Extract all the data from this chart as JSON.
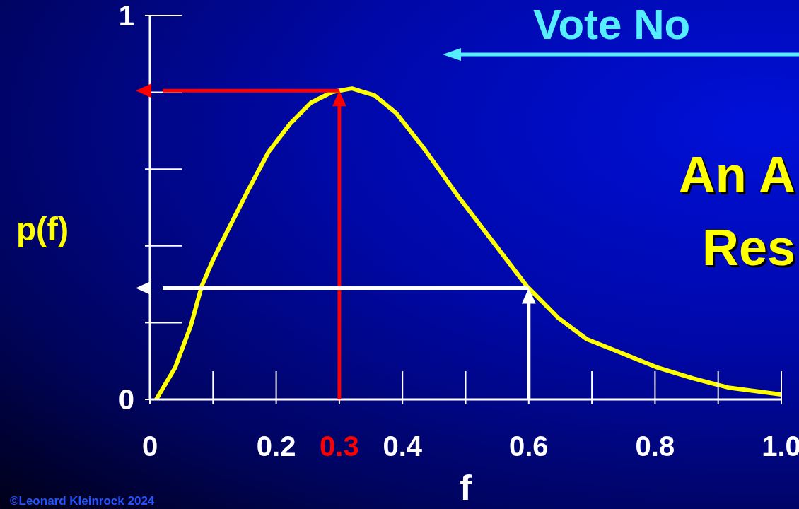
{
  "chart_data": {
    "type": "line",
    "xlabel": "f",
    "ylabel": "p(f)",
    "xlim": [
      0,
      1.0
    ],
    "ylim": [
      0,
      1
    ],
    "xticks": [
      0,
      {
        "value": 0.1,
        "label": null
      },
      0.2,
      0.3,
      0.4,
      {
        "value": 0.5,
        "label": null
      },
      0.6,
      {
        "value": 0.7,
        "label": null
      },
      0.8,
      {
        "value": 0.9,
        "label": null
      },
      {
        "value": 1.0,
        "label": "1.0"
      }
    ],
    "yticks": [
      0,
      {
        "value": 0.2,
        "label": null
      },
      {
        "value": 0.4,
        "label": null
      },
      {
        "value": 0.6,
        "label": null
      },
      {
        "value": 0.8,
        "label": null
      },
      1
    ],
    "line_style": "solid",
    "series": [
      {
        "color": "#ffff00",
        "values": [
          0,
          0.083,
          0.193,
          0.295,
          0.36,
          0.433,
          0.543,
          0.645,
          0.718,
          0.773,
          0.801,
          0.81,
          0.792,
          0.746,
          0.654,
          0.525,
          0.405,
          0.295,
          0.212,
          0.157,
          0.12,
          0.083,
          0.055,
          0.031,
          0.013
        ],
        "x": [
          0.01,
          0.04,
          0.065,
          0.082,
          0.099,
          0.121,
          0.155,
          0.188,
          0.222,
          0.255,
          0.289,
          0.32,
          0.356,
          0.39,
          0.434,
          0.49,
          0.546,
          0.597,
          0.647,
          0.692,
          0.748,
          0.804,
          0.86,
          0.916,
          1.0
        ]
      }
    ],
    "ref_lines": [
      {
        "axis": "x",
        "value": 0.3,
        "color": "#ff0000"
      },
      {
        "axis": "x",
        "value": 0.6,
        "color": "#ffffff"
      }
    ],
    "annotations": [
      "Vote No",
      "An A",
      "Res",
      "©Leonard Kleinrock 2024"
    ]
  }
}
